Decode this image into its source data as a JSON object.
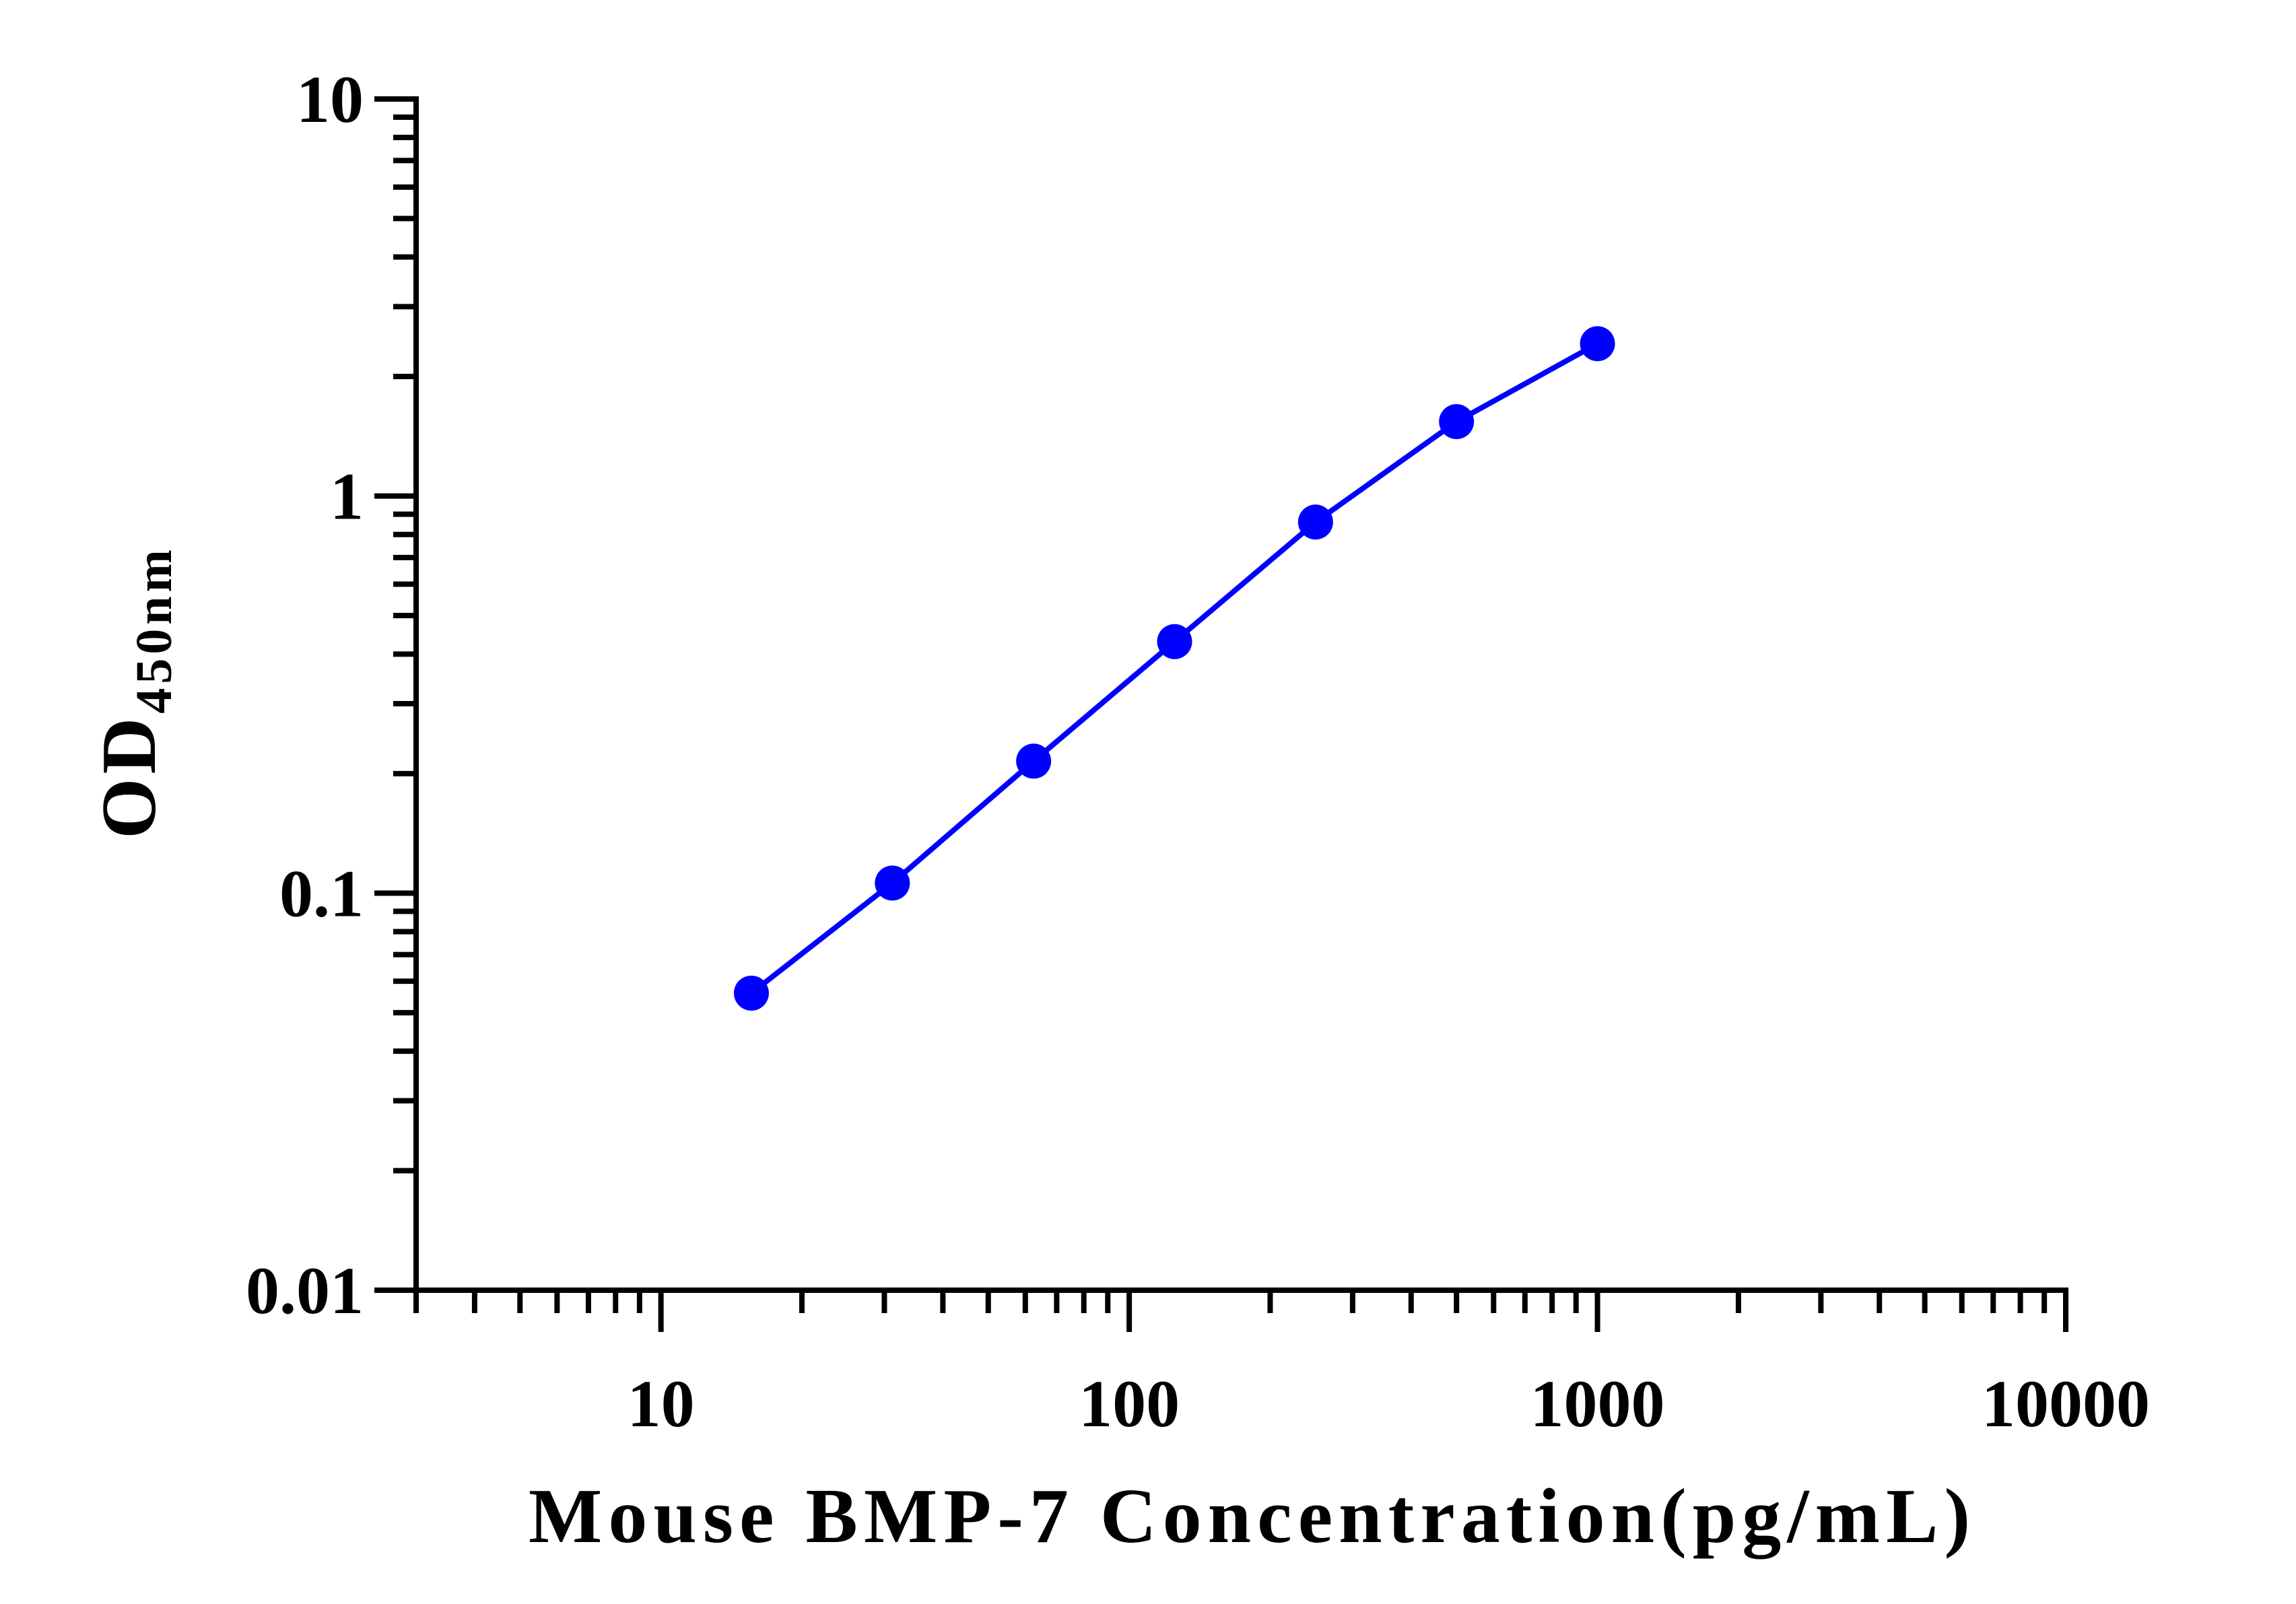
{
  "chart_data": {
    "type": "line",
    "title": "",
    "xlabel": "Mouse BMP-7 Concentration(pg/mL)",
    "ylabel": {
      "main": "OD",
      "subscript": "450nm"
    },
    "x_scale": "log",
    "y_scale": "log",
    "xlim": [
      3,
      10000
    ],
    "ylim": [
      0.01,
      10
    ],
    "x_ticks": [
      "10",
      "100",
      "1000",
      "10000"
    ],
    "y_ticks": [
      "10",
      "1",
      "0.1",
      "0.01"
    ],
    "grid": false,
    "legend": "none",
    "series": [
      {
        "color": "#0000ff",
        "x": [
          15.6,
          31.2,
          62.5,
          125,
          250,
          500,
          1000
        ],
        "y": [
          0.056,
          0.106,
          0.215,
          0.43,
          0.86,
          1.54,
          2.42
        ]
      }
    ]
  }
}
